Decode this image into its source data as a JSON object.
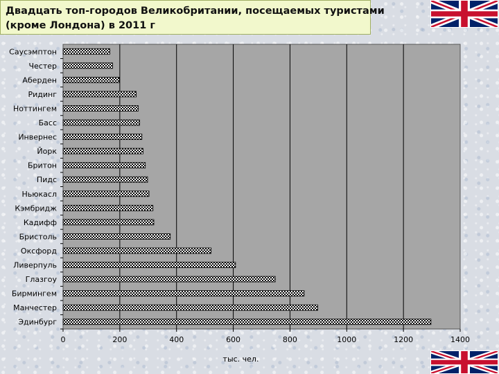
{
  "title": {
    "line1": "Двадцать топ-городов Великобритании, посещаемых туристами",
    "line2": "(кроме Лондона) в 2011 г"
  },
  "icons": {
    "flag": "uk-flag-icon"
  },
  "colors": {
    "plot_bg": "#a6a6a6",
    "bar_fill": "#ffffff",
    "bar_pattern": "#000000",
    "title_bg": "#f2f8cc"
  },
  "chart_data": {
    "type": "bar",
    "orientation": "horizontal",
    "categories": [
      "Саусэмптон",
      "Честер",
      "Аберден",
      "Ридинг",
      "Ноттингем",
      "Басс",
      "Инвернес",
      "Йорк",
      "Бритон",
      "Пидс",
      "Ньюкасл",
      "Кэмбридж",
      "Кадифф",
      "Бристоль",
      "Оксфорд",
      "Ливерпуль",
      "Глазгоу",
      "Бирмингем",
      "Манчестер",
      "Эдинбург"
    ],
    "values": [
      165,
      175,
      198,
      258,
      265,
      270,
      278,
      282,
      290,
      298,
      303,
      317,
      320,
      378,
      522,
      608,
      748,
      850,
      898,
      1297
    ],
    "xlabel": "тыс. чел.",
    "xlim": [
      0,
      1400
    ],
    "xticks": [
      0,
      200,
      400,
      600,
      800,
      1000,
      1200,
      1400
    ],
    "grid": "vertical"
  }
}
